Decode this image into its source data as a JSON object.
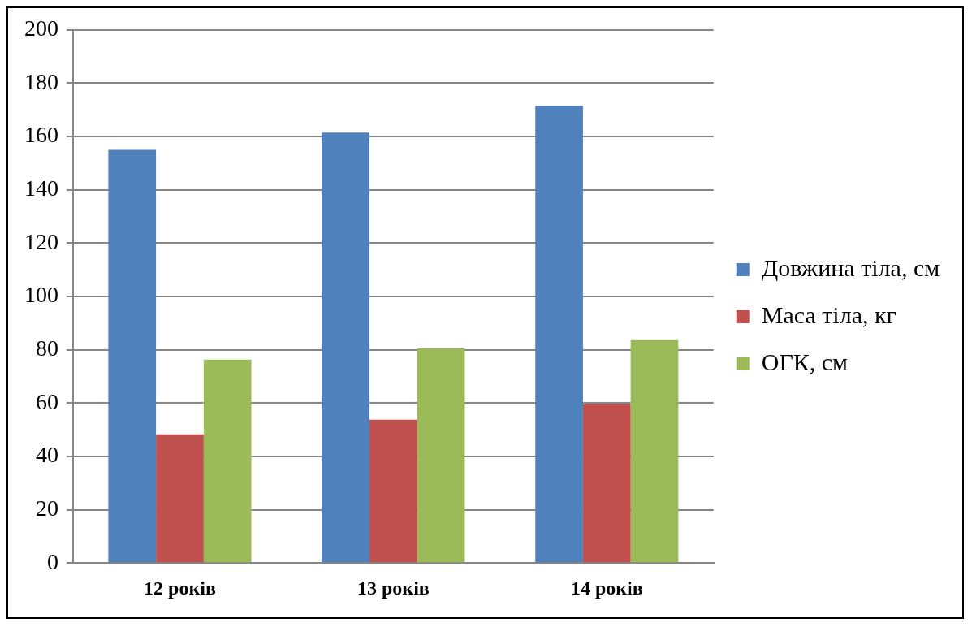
{
  "chart_data": {
    "type": "bar",
    "categories": [
      "12 років",
      "13 років",
      "14 років"
    ],
    "series": [
      {
        "name": "Довжина тіла, см",
        "color": "#4f81bd",
        "values": [
          155,
          161.5,
          171.5
        ]
      },
      {
        "name": "Маса тіла, кг",
        "color": "#c0504d",
        "values": [
          48.3,
          53.8,
          59.6
        ]
      },
      {
        "name": "ОГК, см",
        "color": "#9bbb59",
        "values": [
          76.3,
          80.5,
          83.6
        ]
      }
    ],
    "ylim": [
      0,
      200
    ],
    "yticks": [
      0,
      20,
      40,
      60,
      80,
      100,
      120,
      140,
      160,
      180,
      200
    ],
    "grid": "y",
    "legend": "right"
  }
}
